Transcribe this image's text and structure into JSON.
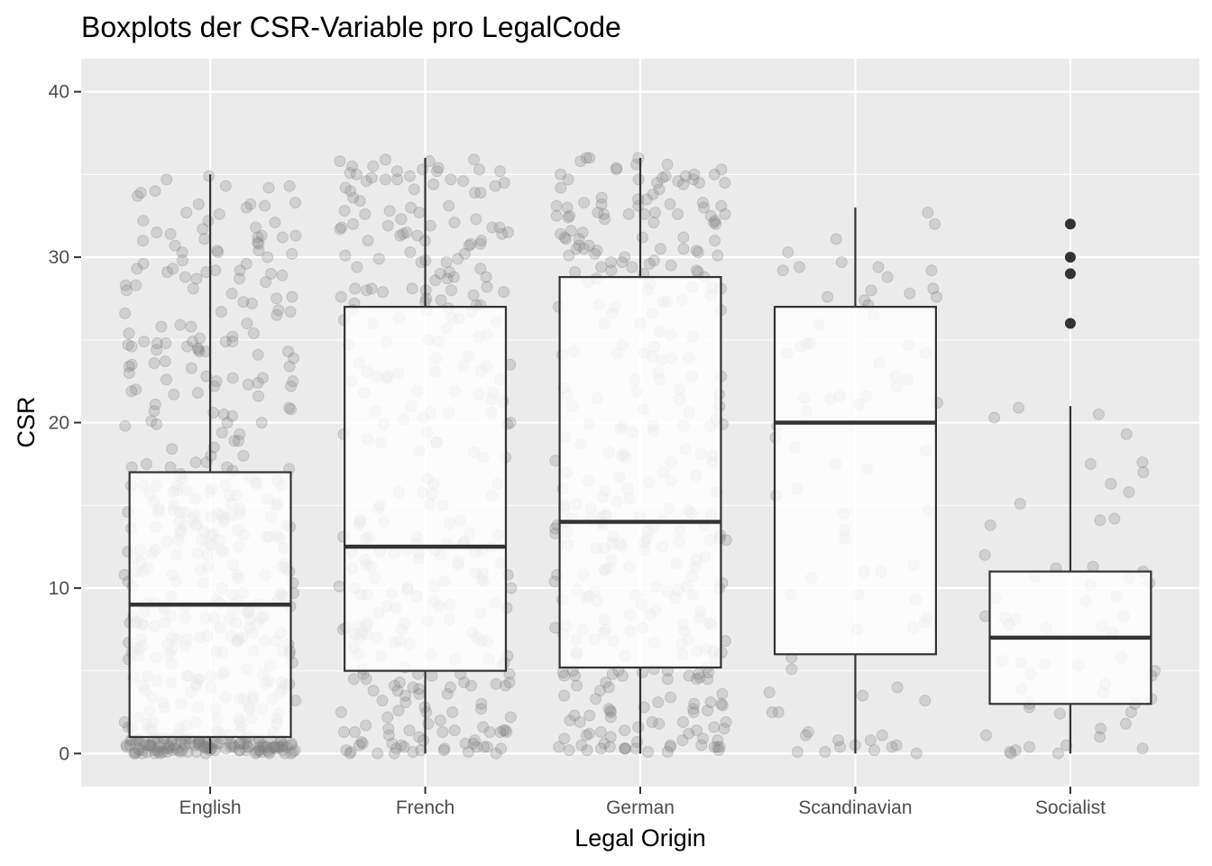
{
  "chart_data": {
    "type": "boxplot",
    "title": "Boxplots der CSR-Variable pro LegalCode",
    "xlabel": "Legal Origin",
    "ylabel": "CSR",
    "ylim": [
      -2,
      42
    ],
    "yticks": [
      0,
      10,
      20,
      30,
      40
    ],
    "grid": true,
    "background": "#ebebeb",
    "gridColor": "#ffffff",
    "boxColor": "#333333",
    "pointColor": "#7f7f7f",
    "outlierColor": "#333333",
    "categories": [
      "English",
      "French",
      "German",
      "Scandinavian",
      "Socialist"
    ],
    "boxes": [
      {
        "category": "English",
        "lower_whisker": 0,
        "q1": 1,
        "median": 9,
        "q3": 17,
        "upper_whisker": 35,
        "outliers": [],
        "jitter_n": 520
      },
      {
        "category": "French",
        "lower_whisker": 0,
        "q1": 5,
        "median": 12.5,
        "q3": 27,
        "upper_whisker": 36,
        "outliers": [],
        "jitter_n": 330
      },
      {
        "category": "German",
        "lower_whisker": 0,
        "q1": 5.2,
        "median": 14,
        "q3": 28.8,
        "upper_whisker": 36,
        "outliers": [],
        "jitter_n": 360
      },
      {
        "category": "Scandinavian",
        "lower_whisker": 0,
        "q1": 6,
        "median": 20,
        "q3": 27,
        "upper_whisker": 33,
        "outliers": [],
        "jitter_n": 80
      },
      {
        "category": "Socialist",
        "lower_whisker": 0,
        "q1": 3,
        "median": 7,
        "q3": 11,
        "upper_whisker": 21,
        "outliers": [
          26,
          29,
          30,
          32
        ],
        "jitter_n": 60
      }
    ]
  }
}
